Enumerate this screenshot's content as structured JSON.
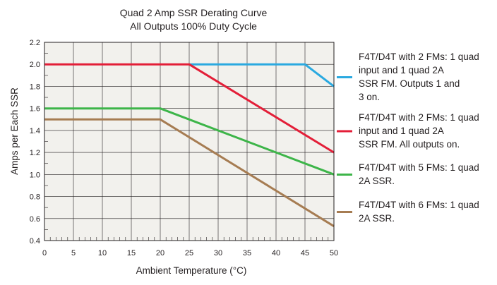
{
  "chart_data": {
    "type": "line",
    "title": [
      "Quad 2 Amp SSR Derating Curve",
      "All Outputs 100% Duty Cycle"
    ],
    "xlabel": "Ambient Temperature (°C)",
    "ylabel": "Amps per Each SSR",
    "xlim": [
      0,
      50
    ],
    "ylim": [
      0.4,
      2.2
    ],
    "x_ticks": [
      0,
      5,
      10,
      15,
      20,
      25,
      30,
      35,
      40,
      45,
      50
    ],
    "y_ticks": [
      "0.4",
      "0.6",
      "0.8",
      "1.0",
      "1.2",
      "1.4",
      "1.6",
      "1.8",
      "2.0",
      "2.2"
    ],
    "grid": true,
    "background_color": "#f2f1ed",
    "legend_position": "right",
    "series": [
      {
        "name": "F4T/D4T with 2 FMs: 1 quad input and 1 quad 2A SSR FM. Outputs 1 and 3 on.",
        "legend_lines": [
          "F4T/D4T with 2 FMs: 1 quad",
          "input and 1 quad 2A",
          "SSR FM. Outputs 1 and",
          "3 on."
        ],
        "color": "#2aa9e0",
        "points": [
          [
            25,
            2.0
          ],
          [
            45,
            2.0
          ],
          [
            50,
            1.8
          ]
        ]
      },
      {
        "name": "F4T/D4T with 2 FMs: 1 quad input and 1 quad 2A SSR FM. All outputs on.",
        "legend_lines": [
          "F4T/D4T with 2 FMs: 1 quad",
          "input and 1 quad 2A",
          "SSR FM. All outputs on."
        ],
        "color": "#e31e38",
        "points": [
          [
            0,
            2.0
          ],
          [
            25,
            2.0
          ],
          [
            50,
            1.2
          ]
        ]
      },
      {
        "name": "F4T/D4T with 5 FMs: 1 quad 2A SSR.",
        "legend_lines": [
          "F4T/D4T with 5 FMs: 1 quad",
          "2A SSR."
        ],
        "color": "#3db549",
        "points": [
          [
            0,
            1.6
          ],
          [
            20,
            1.6
          ],
          [
            50,
            1.0
          ]
        ]
      },
      {
        "name": "F4T/D4T with 6 FMs: 1 quad 2A SSR.",
        "legend_lines": [
          "F4T/D4T with 6 FMs: 1 quad",
          "2A SSR."
        ],
        "color": "#a67c52",
        "points": [
          [
            0,
            1.5
          ],
          [
            20,
            1.5
          ],
          [
            50,
            0.53
          ]
        ]
      }
    ]
  }
}
